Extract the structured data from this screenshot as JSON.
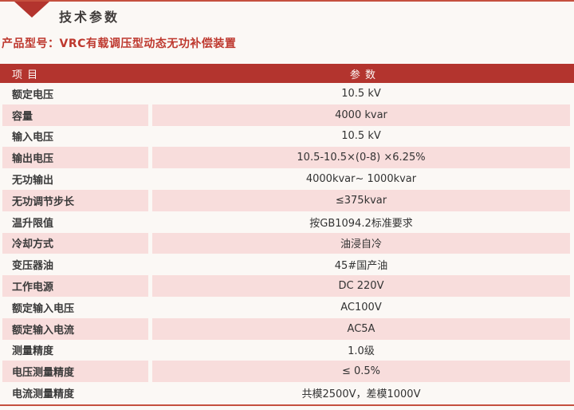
{
  "page": {
    "title": "技术参数",
    "product_label": "产品型号：VRC有载调压型动态无功补偿装置"
  },
  "table": {
    "headers": {
      "item": "项 目",
      "param": "参 数"
    },
    "rows": [
      {
        "item": "额定电压",
        "param": "10.5 kV"
      },
      {
        "item": "容量",
        "param": "4000 kvar"
      },
      {
        "item": "输入电压",
        "param": "10.5 kV"
      },
      {
        "item": "输出电压",
        "param": "10.5-10.5×(0-8) ×6.25%"
      },
      {
        "item": "无功输出",
        "param": "4000kvar~ 1000kvar"
      },
      {
        "item": "无功调节步长",
        "param": "≤375kvar"
      },
      {
        "item": "温升限值",
        "param": "按GB1094.2标准要求"
      },
      {
        "item": "冷却方式",
        "param": "油浸自冷"
      },
      {
        "item": "变压器油",
        "param": "45#国产油"
      },
      {
        "item": "工作电源",
        "param": "DC 220V"
      },
      {
        "item": "额定输入电压",
        "param": "AC100V"
      },
      {
        "item": "额定输入电流",
        "param": "AC5A"
      },
      {
        "item": "测量精度",
        "param": "1.0级"
      },
      {
        "item": "电压测量精度",
        "param": "≤ 0.5%"
      },
      {
        "item": "电流测量精度",
        "param": "共模2500V，差模1000V"
      }
    ]
  },
  "colors": {
    "header_bg": "#B3342E",
    "row_pink": "#F8DDDC",
    "accent_red": "#BE382E",
    "rule_red": "#C5503F",
    "page_bg": "#FBF8F5"
  }
}
